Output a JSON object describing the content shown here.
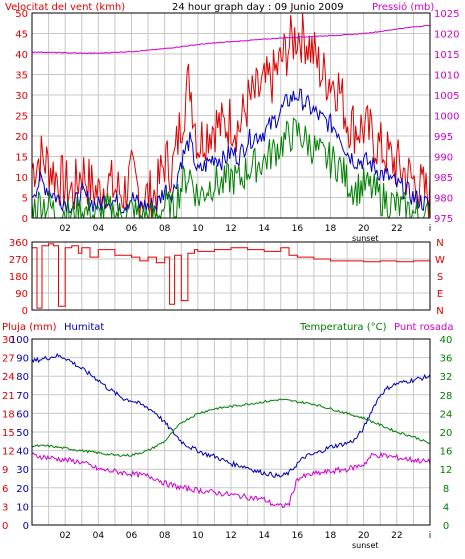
{
  "header": {
    "title": "24 hour graph day : 09 Junio 2009"
  },
  "colors": {
    "wind_max": "#e00000",
    "wind_avg": "#0000c0",
    "wind_min": "#008000",
    "pressure": "#d000d0",
    "direction": "#e00000",
    "rain": "#e00000",
    "humidity": "#0000b0",
    "temperature": "#008000",
    "dewpoint": "#d000d0",
    "grid": "#c8c8c8",
    "frame": "#000000"
  },
  "chart_data": [
    {
      "type": "line",
      "name": "wind-pressure",
      "left_axis_label": "Velocitat del vent (kmh)",
      "right_axis_label": "Pressió (mb)",
      "x_ticks": [
        "02",
        "04",
        "06",
        "08",
        "10",
        "12",
        "14",
        "16",
        "18",
        "20",
        "22",
        "i"
      ],
      "x_extra_label": "sunset",
      "left_ticks": [
        "0",
        "5",
        "10",
        "15",
        "20",
        "25",
        "30",
        "35",
        "40",
        "45",
        "50"
      ],
      "right_ticks": [
        "975",
        "980",
        "985",
        "990",
        "995",
        "1000",
        "1005",
        "1010",
        "1015",
        "1020",
        "1025"
      ],
      "xlim": [
        0,
        24
      ],
      "ylim_left": [
        0,
        50
      ],
      "ylim_right": [
        975,
        1025
      ],
      "grid": true,
      "series": [
        {
          "key": "gust",
          "axis": "left",
          "x": [
            0,
            0.5,
            1,
            1.5,
            2,
            2.5,
            3,
            3.5,
            4,
            4.5,
            5,
            5.5,
            6,
            6.5,
            7,
            7.5,
            8,
            8.5,
            9,
            9.5,
            10,
            10.5,
            11,
            11.5,
            12,
            12.5,
            13,
            13.5,
            14,
            14.5,
            15,
            15.5,
            16,
            16.5,
            17,
            17.5,
            18,
            18.5,
            19,
            19.5,
            20,
            20.5,
            21,
            21.5,
            22,
            22.5,
            23,
            23.5,
            24
          ],
          "values": [
            12,
            15,
            13,
            10,
            8,
            6,
            12,
            8,
            6,
            9,
            7,
            6,
            10,
            6,
            5,
            6,
            14,
            12,
            24,
            34,
            18,
            21,
            23,
            22,
            24,
            22,
            28,
            30,
            32,
            34,
            38,
            42,
            45,
            44,
            40,
            35,
            34,
            32,
            24,
            22,
            22,
            20,
            17,
            15,
            13,
            11,
            9,
            7,
            5
          ]
        },
        {
          "key": "average",
          "axis": "left",
          "x": [
            0,
            0.5,
            1,
            1.5,
            2,
            2.5,
            3,
            3.5,
            4,
            4.5,
            5,
            5.5,
            6,
            6.5,
            7,
            7.5,
            8,
            8.5,
            9,
            9.5,
            10,
            10.5,
            11,
            11.5,
            12,
            12.5,
            13,
            13.5,
            14,
            14.5,
            15,
            15.5,
            16,
            16.5,
            17,
            17.5,
            18,
            18.5,
            19,
            19.5,
            20,
            20.5,
            21,
            21.5,
            22,
            22.5,
            23,
            23.5,
            24
          ],
          "values": [
            6,
            9,
            7,
            5,
            4,
            3,
            6,
            4,
            3,
            5,
            4,
            3,
            5,
            3,
            3,
            3,
            7,
            6,
            14,
            19,
            11,
            13,
            15,
            14,
            16,
            15,
            19,
            20,
            21,
            23,
            26,
            29,
            30,
            28,
            26,
            24,
            23,
            21,
            16,
            14,
            14,
            13,
            11,
            10,
            8,
            7,
            5,
            4,
            3
          ]
        },
        {
          "key": "minimum",
          "axis": "left",
          "x": [
            0,
            0.5,
            1,
            1.5,
            2,
            2.5,
            3,
            3.5,
            4,
            4.5,
            5,
            5.5,
            6,
            6.5,
            7,
            7.5,
            8,
            8.5,
            9,
            9.5,
            10,
            10.5,
            11,
            11.5,
            12,
            12.5,
            13,
            13.5,
            14,
            14.5,
            15,
            15.5,
            16,
            16.5,
            17,
            17.5,
            18,
            18.5,
            19,
            19.5,
            20,
            20.5,
            21,
            21.5,
            22,
            22.5,
            23,
            23.5,
            24
          ],
          "values": [
            2,
            4,
            3,
            1,
            1,
            0,
            2,
            1,
            0,
            2,
            1,
            0,
            2,
            0,
            0,
            0,
            3,
            2,
            8,
            11,
            5,
            7,
            9,
            8,
            10,
            9,
            12,
            13,
            14,
            16,
            18,
            20,
            21,
            19,
            17,
            15,
            14,
            13,
            9,
            7,
            8,
            7,
            5,
            4,
            3,
            2,
            1,
            0,
            0
          ]
        },
        {
          "key": "pressure",
          "axis": "right",
          "x": [
            0,
            1,
            2,
            3,
            4,
            5,
            6,
            7,
            8,
            9,
            10,
            11,
            12,
            13,
            14,
            15,
            16,
            17,
            18,
            19,
            20,
            21,
            22,
            23,
            24
          ],
          "values": [
            1015.5,
            1015.4,
            1015.3,
            1015.2,
            1015.2,
            1015.4,
            1015.6,
            1015.9,
            1016.3,
            1016.8,
            1017.3,
            1017.7,
            1018.0,
            1018.3,
            1018.6,
            1018.9,
            1019.1,
            1019.3,
            1019.5,
            1019.7,
            1020.0,
            1020.5,
            1021.1,
            1021.6,
            1022.0
          ]
        }
      ]
    },
    {
      "type": "line",
      "name": "wind-direction",
      "left_ticks": [
        "0",
        "90",
        "180",
        "270",
        "360"
      ],
      "right_ticks": [
        "N",
        "E",
        "S",
        "W",
        "N"
      ],
      "xlim": [
        0,
        24
      ],
      "ylim": [
        0,
        360
      ],
      "grid": true,
      "series": [
        {
          "key": "direction",
          "x": [
            0,
            0.3,
            0.6,
            1,
            1.3,
            1.6,
            2,
            2.4,
            2.8,
            3,
            3.5,
            4,
            5,
            6,
            6.5,
            7,
            7.5,
            8,
            8.3,
            8.6,
            9,
            9.4,
            9.8,
            10,
            11,
            12,
            13,
            14,
            15,
            15.5,
            16,
            17,
            18,
            19,
            20,
            21,
            22,
            23,
            24
          ],
          "values": [
            330,
            10,
            340,
            350,
            340,
            20,
            330,
            340,
            300,
            330,
            280,
            320,
            290,
            280,
            260,
            280,
            250,
            280,
            30,
            290,
            50,
            300,
            320,
            310,
            320,
            330,
            320,
            310,
            330,
            290,
            280,
            270,
            260,
            260,
            255,
            260,
            255,
            260,
            265
          ]
        }
      ]
    },
    {
      "type": "line",
      "name": "rain-humidity-temperature",
      "header_labels": {
        "rain": "Pluja (mm)",
        "humidity": "Humitat",
        "temperature": "Temperatura (°C)",
        "dewpoint": "Punt rosada"
      },
      "x_ticks": [
        "02",
        "04",
        "06",
        "08",
        "10",
        "12",
        "14",
        "16",
        "18",
        "20",
        "22",
        "i"
      ],
      "x_extra_label": "sunset",
      "rain_ticks": [
        "0",
        "3",
        "6",
        "9",
        "12",
        "15",
        "18",
        "21",
        "24",
        "27",
        "30"
      ],
      "humidity_ticks": [
        "0",
        "10",
        "20",
        "30",
        "40",
        "50",
        "60",
        "70",
        "80",
        "90",
        "100"
      ],
      "temperature_ticks": [
        "0",
        "4",
        "8",
        "12",
        "16",
        "20",
        "24",
        "28",
        "32",
        "36",
        "40"
      ],
      "xlim": [
        0,
        24
      ],
      "ylim_humidity": [
        0,
        100
      ],
      "ylim_temperature": [
        0,
        40
      ],
      "grid": true,
      "series": [
        {
          "key": "rain",
          "axis": "rain",
          "x": [
            0,
            24
          ],
          "values": [
            0,
            0
          ]
        },
        {
          "key": "humidity",
          "axis": "humidity",
          "x": [
            0,
            0.5,
            1,
            1.5,
            2,
            2.5,
            3,
            3.5,
            4,
            4.5,
            5,
            5.5,
            6,
            6.5,
            7,
            7.5,
            8,
            8.5,
            9,
            9.5,
            10,
            10.5,
            11,
            11.5,
            12,
            12.5,
            13,
            13.5,
            14,
            14.5,
            15,
            15.5,
            16,
            16.5,
            17,
            17.5,
            18,
            18.5,
            19,
            19.5,
            20,
            20.5,
            21,
            21.5,
            22,
            22.5,
            23,
            23.5,
            24
          ],
          "values": [
            88,
            89,
            90,
            91,
            90,
            87,
            84,
            81,
            78,
            74,
            71,
            68,
            67,
            65,
            63,
            60,
            55,
            50,
            45,
            42,
            40,
            38,
            37,
            35,
            33,
            32,
            31,
            29,
            28,
            27,
            26,
            28,
            33,
            37,
            38,
            40,
            42,
            43,
            44,
            46,
            52,
            62,
            70,
            74,
            76,
            77,
            78,
            79,
            80
          ]
        },
        {
          "key": "temperature",
          "axis": "temperature",
          "x": [
            0,
            1,
            2,
            3,
            4,
            5,
            6,
            7,
            7.5,
            8,
            8.5,
            9,
            9.5,
            10,
            11,
            12,
            13,
            14,
            15,
            16,
            17,
            18,
            19,
            20,
            21,
            22,
            23,
            24
          ],
          "values": [
            17,
            17,
            16.5,
            16,
            15.5,
            15,
            15,
            16,
            17,
            18,
            20,
            22,
            23,
            24,
            25,
            25.5,
            26,
            26.5,
            27,
            26.5,
            26,
            25,
            24,
            23,
            21.5,
            20,
            19,
            17.5
          ]
        },
        {
          "key": "dewpoint",
          "axis": "temperature",
          "x": [
            0,
            1,
            2,
            3,
            4,
            5,
            6,
            7,
            7.5,
            8,
            8.5,
            9,
            10,
            11,
            12,
            13,
            14,
            14.5,
            15,
            15.5,
            16,
            17,
            18,
            19,
            20,
            20.5,
            21,
            22,
            23,
            24
          ],
          "values": [
            15,
            14.5,
            14,
            13.5,
            12,
            11.5,
            11,
            10.5,
            10,
            9,
            8.5,
            8,
            7.5,
            7,
            6.5,
            6,
            5.5,
            4.5,
            4,
            4.5,
            10,
            11,
            11.5,
            12,
            13,
            15,
            15,
            14.5,
            14,
            13.5
          ]
        }
      ]
    }
  ]
}
